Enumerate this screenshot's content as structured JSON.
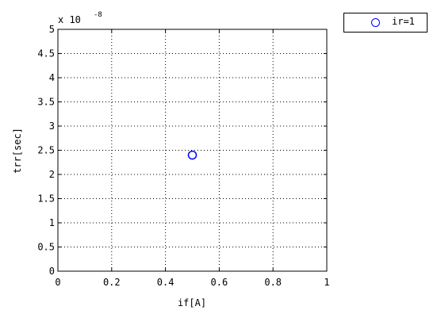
{
  "chart_data": {
    "type": "scatter",
    "xlabel": "if[A]",
    "ylabel": "trr[sec]",
    "xlim": [
      0,
      1
    ],
    "ylim": [
      0,
      5e-08
    ],
    "x_ticks": [
      "0",
      "0.2",
      "0.4",
      "0.6",
      "0.8",
      "1"
    ],
    "y_ticks": [
      "0",
      "0.5",
      "1",
      "1.5",
      "2",
      "2.5",
      "3",
      "3.5",
      "4",
      "4.5",
      "5"
    ],
    "y_multiplier": "x 10",
    "y_exponent": "-8",
    "grid": true,
    "legend_position": "outside-top-right",
    "series": [
      {
        "name": "ir=1",
        "marker": "circle",
        "color": "#0000ff",
        "x": [
          0.5
        ],
        "y": [
          2.4e-08
        ]
      }
    ]
  }
}
